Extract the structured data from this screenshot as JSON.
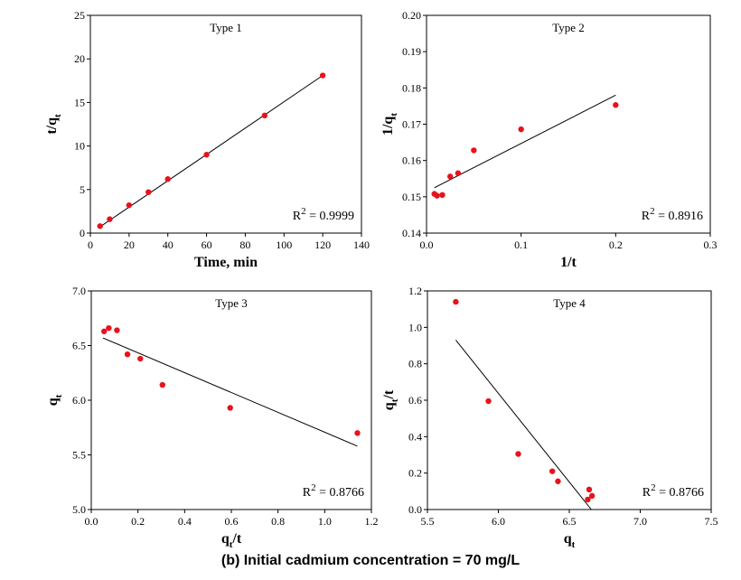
{
  "caption": "(b) Initial cadmium concentration = 70 mg/L",
  "colors": {
    "points": "#e8121b",
    "line": "#000000",
    "frame": "#000000"
  },
  "chart_data": [
    {
      "type": "scatter",
      "title": "Type 1",
      "xlabel": "Time, min",
      "ylabel": {
        "base": "t/q",
        "sub": "t"
      },
      "r2_label": "= 0.9999",
      "xlim": [
        0,
        140
      ],
      "ylim": [
        0,
        25
      ],
      "xticks": [
        0,
        20,
        40,
        60,
        80,
        100,
        120,
        140
      ],
      "yticks": [
        0,
        5,
        10,
        15,
        20,
        25
      ],
      "xticklabels": [
        "0",
        "20",
        "40",
        "60",
        "80",
        "100",
        "120",
        "140"
      ],
      "yticklabels": [
        "0",
        "5",
        "10",
        "15",
        "20",
        "25"
      ],
      "x": [
        5,
        10,
        20,
        30,
        40,
        60,
        90,
        120
      ],
      "y": [
        0.8,
        1.6,
        3.2,
        4.7,
        6.2,
        9.0,
        13.5,
        18.1
      ],
      "fit_line": {
        "x": [
          5,
          120
        ],
        "y": [
          0.72,
          18.1
        ]
      }
    },
    {
      "type": "scatter",
      "title": "Type 2",
      "xlabel": "1/t",
      "ylabel": {
        "base": "1/q",
        "sub": "t"
      },
      "r2_label": "= 0.8916",
      "xlim": [
        0,
        0.3
      ],
      "ylim": [
        0.14,
        0.2
      ],
      "xticks": [
        0,
        0.1,
        0.2,
        0.3
      ],
      "yticks": [
        0.14,
        0.15,
        0.16,
        0.17,
        0.18,
        0.19,
        0.2
      ],
      "xticklabels": [
        "0.0",
        "0.1",
        "0.2",
        "0.3"
      ],
      "yticklabels": [
        "0.14",
        "0.15",
        "0.16",
        "0.17",
        "0.18",
        "0.19",
        "0.20"
      ],
      "x": [
        0.0083,
        0.0111,
        0.0167,
        0.025,
        0.0333,
        0.05,
        0.1,
        0.2
      ],
      "y": [
        0.1508,
        0.1503,
        0.1505,
        0.1556,
        0.1565,
        0.1628,
        0.1686,
        0.1753
      ],
      "fit_line": {
        "x": [
          0.0083,
          0.2
        ],
        "y": [
          0.1525,
          0.178
        ]
      }
    },
    {
      "type": "scatter",
      "title": "Type 3",
      "xlabel": {
        "base": "q",
        "sub": "t",
        "after": "/t"
      },
      "ylabel": {
        "base": "q",
        "sub": "t"
      },
      "r2_label": "= 0.8766",
      "xlim": [
        0,
        1.2
      ],
      "ylim": [
        5.0,
        7.0
      ],
      "xticks": [
        0,
        0.2,
        0.4,
        0.6,
        0.8,
        1.0,
        1.2
      ],
      "yticks": [
        5.0,
        5.5,
        6.0,
        6.5,
        7.0
      ],
      "xticklabels": [
        "0.0",
        "0.2",
        "0.4",
        "0.6",
        "0.8",
        "1.0",
        "1.2"
      ],
      "yticklabels": [
        "5.0",
        "5.5",
        "6.0",
        "6.5",
        "7.0"
      ],
      "x": [
        0.055,
        0.075,
        0.11,
        0.155,
        0.21,
        0.305,
        0.595,
        1.14
      ],
      "y": [
        6.63,
        6.66,
        6.64,
        6.42,
        6.38,
        6.14,
        5.93,
        5.7
      ],
      "fit_line": {
        "x": [
          0.05,
          1.14
        ],
        "y": [
          6.57,
          5.58
        ]
      }
    },
    {
      "type": "scatter",
      "title": "Type 4",
      "xlabel": {
        "base": "q",
        "sub": "t"
      },
      "ylabel": {
        "base": "q",
        "sub": "t",
        "after": "/t"
      },
      "r2_label": "= 0.8766",
      "xlim": [
        5.5,
        7.5
      ],
      "ylim": [
        0.0,
        1.2
      ],
      "xticks": [
        5.5,
        6.0,
        6.5,
        7.0,
        7.5
      ],
      "yticks": [
        0.0,
        0.2,
        0.4,
        0.6,
        0.8,
        1.0,
        1.2
      ],
      "xticklabels": [
        "5.5",
        "6.0",
        "6.5",
        "7.0",
        "7.5"
      ],
      "yticklabels": [
        "0.0",
        "0.2",
        "0.4",
        "0.6",
        "0.8",
        "1.0",
        "1.2"
      ],
      "x": [
        5.7,
        5.93,
        6.14,
        6.38,
        6.42,
        6.63,
        6.64,
        6.66
      ],
      "y": [
        1.14,
        0.595,
        0.305,
        0.21,
        0.155,
        0.055,
        0.11,
        0.075
      ],
      "fit_line": {
        "x": [
          5.7,
          6.655
        ],
        "y": [
          0.93,
          0.0
        ]
      }
    }
  ]
}
